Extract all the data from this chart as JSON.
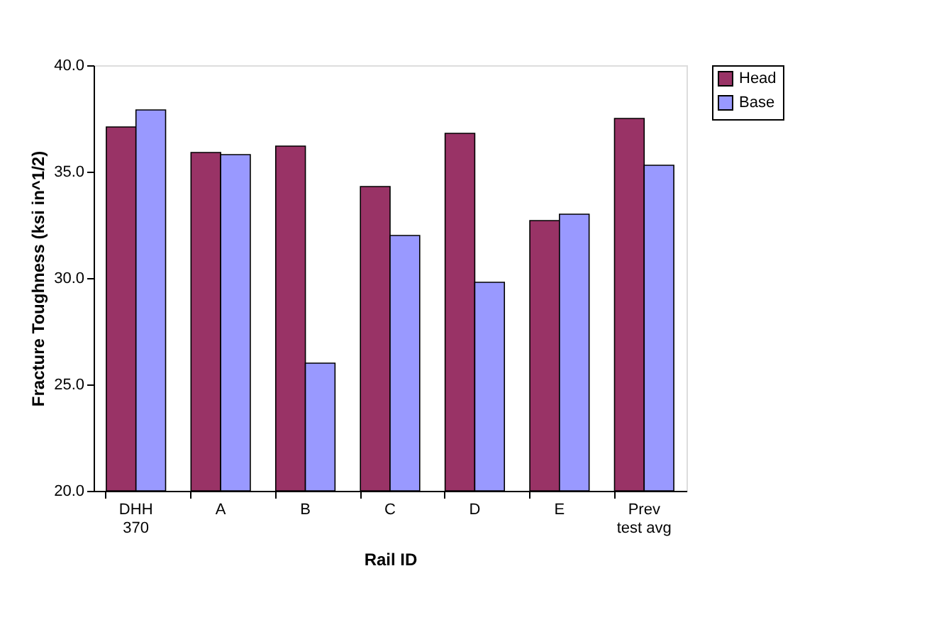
{
  "chart_data": {
    "type": "bar",
    "categories": [
      "DHH 370",
      "A",
      "B",
      "C",
      "D",
      "E",
      "Prev test avg"
    ],
    "series": [
      {
        "name": "Head",
        "color": "#993366",
        "values": [
          37.1,
          35.9,
          36.2,
          34.3,
          36.8,
          32.7,
          37.5
        ]
      },
      {
        "name": "Base",
        "color": "#9999ff",
        "values": [
          37.9,
          35.8,
          26.0,
          32.0,
          29.8,
          33.0,
          35.3
        ]
      }
    ],
    "xlabel": "Rail ID",
    "ylabel": "Fracture Toughness (ksi in^1/2)",
    "ylim": [
      20,
      40
    ],
    "yticks": [
      {
        "value": 20,
        "label": "20.0"
      },
      {
        "value": 25,
        "label": "25.0"
      },
      {
        "value": 30,
        "label": "30.0"
      },
      {
        "value": 35,
        "label": "35.0"
      },
      {
        "value": 40,
        "label": "40.0"
      }
    ],
    "grid": false,
    "legend": "right"
  }
}
